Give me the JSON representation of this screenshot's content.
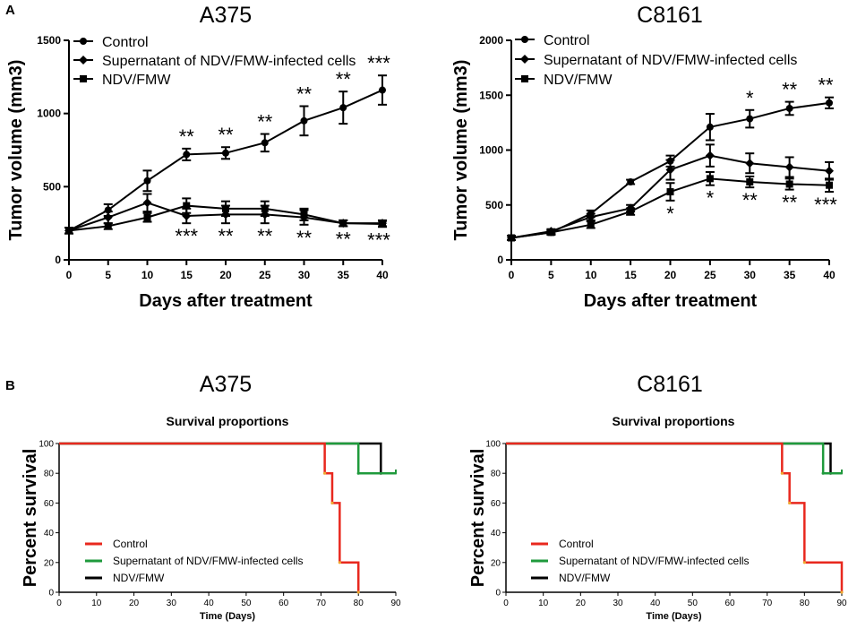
{
  "panel_labels": {
    "a": "A",
    "b": "B"
  },
  "chart_data": [
    {
      "id": "a375-tumor",
      "type": "line",
      "title": "A375",
      "xlabel": "Days after treatment",
      "ylabel": "Tumor volume (mm3)",
      "x": [
        0,
        5,
        10,
        15,
        20,
        25,
        30,
        35,
        40
      ],
      "xticks": [
        "0",
        "5",
        "10",
        "15",
        "20",
        "25",
        "30",
        "35",
        "40"
      ],
      "yticks": [
        "0",
        "500",
        "1000",
        "1500"
      ],
      "xlim": [
        0,
        40
      ],
      "ylim": [
        0,
        1500
      ],
      "series": [
        {
          "name": "Control",
          "marker": "circle",
          "values": [
            200,
            340,
            540,
            720,
            730,
            800,
            950,
            1040,
            1160
          ],
          "errors": [
            20,
            40,
            70,
            40,
            40,
            60,
            100,
            110,
            100
          ]
        },
        {
          "name": "Supernatant of NDV/FMW-infected cells",
          "marker": "diamond",
          "values": [
            200,
            290,
            390,
            300,
            310,
            310,
            290,
            250,
            250
          ],
          "errors": [
            20,
            40,
            60,
            50,
            60,
            60,
            50,
            20,
            20
          ]
        },
        {
          "name": "NDV/FMW",
          "marker": "square",
          "values": [
            200,
            230,
            290,
            370,
            350,
            350,
            310,
            250,
            245
          ],
          "errors": [
            20,
            20,
            30,
            50,
            50,
            50,
            40,
            20,
            20
          ]
        }
      ],
      "annotations": [
        {
          "x": 15,
          "text": "**",
          "pos": "above"
        },
        {
          "x": 20,
          "text": "**",
          "pos": "above"
        },
        {
          "x": 25,
          "text": "**",
          "pos": "above"
        },
        {
          "x": 30,
          "text": "**",
          "pos": "above"
        },
        {
          "x": 35,
          "text": "**",
          "pos": "above"
        },
        {
          "x": 40,
          "text": "***",
          "pos": "above"
        },
        {
          "x": 15,
          "text": "***",
          "pos": "below"
        },
        {
          "x": 20,
          "text": "**",
          "pos": "below"
        },
        {
          "x": 25,
          "text": "**",
          "pos": "below"
        },
        {
          "x": 30,
          "text": "**",
          "pos": "below"
        },
        {
          "x": 35,
          "text": "**",
          "pos": "below"
        },
        {
          "x": 40,
          "text": "***",
          "pos": "below"
        }
      ]
    },
    {
      "id": "c8161-tumor",
      "type": "line",
      "title": "C8161",
      "xlabel": "Days after treatment",
      "ylabel": "Tumor volume (mm3)",
      "x": [
        0,
        5,
        10,
        15,
        20,
        25,
        30,
        35,
        40
      ],
      "xticks": [
        "0",
        "5",
        "10",
        "15",
        "20",
        "25",
        "30",
        "35",
        "40"
      ],
      "yticks": [
        "0",
        "500",
        "1000",
        "1500",
        "2000"
      ],
      "xlim": [
        0,
        40
      ],
      "ylim": [
        0,
        2000
      ],
      "series": [
        {
          "name": "Control",
          "marker": "circle",
          "values": [
            200,
            250,
            420,
            710,
            900,
            1210,
            1285,
            1380,
            1430
          ],
          "errors": [
            20,
            20,
            30,
            20,
            50,
            120,
            80,
            60,
            50
          ]
        },
        {
          "name": "Supernatant of NDV/FMW-infected cells",
          "marker": "diamond",
          "values": [
            200,
            260,
            390,
            470,
            820,
            950,
            880,
            845,
            810
          ],
          "errors": [
            20,
            20,
            30,
            30,
            90,
            100,
            90,
            90,
            80
          ]
        },
        {
          "name": "NDV/FMW",
          "marker": "square",
          "values": [
            200,
            250,
            320,
            440,
            620,
            740,
            710,
            690,
            680
          ],
          "errors": [
            20,
            20,
            30,
            30,
            80,
            60,
            50,
            50,
            60
          ]
        }
      ],
      "annotations": [
        {
          "x": 30,
          "text": "*",
          "pos": "above"
        },
        {
          "x": 35,
          "text": "**",
          "pos": "above"
        },
        {
          "x": 40,
          "text": "**",
          "pos": "above"
        },
        {
          "x": 20,
          "text": "*",
          "pos": "below"
        },
        {
          "x": 25,
          "text": "*",
          "pos": "below"
        },
        {
          "x": 30,
          "text": "**",
          "pos": "below"
        },
        {
          "x": 35,
          "text": "**",
          "pos": "below"
        },
        {
          "x": 40,
          "text": "***",
          "pos": "below"
        }
      ]
    },
    {
      "id": "a375-survival",
      "type": "line",
      "title": "A375",
      "subtitle": "Survival proportions",
      "xlabel": "Time (Days)",
      "ylabel": "Percent survival",
      "xticks": [
        "0",
        "10",
        "20",
        "30",
        "40",
        "50",
        "60",
        "70",
        "80",
        "90"
      ],
      "yticks": [
        "0",
        "20",
        "40",
        "60",
        "80",
        "100"
      ],
      "xlim": [
        0,
        90
      ],
      "ylim": [
        0,
        100
      ],
      "series": [
        {
          "name": "Control",
          "color": "#e8281e",
          "steps": [
            [
              0,
              100
            ],
            [
              71,
              80
            ],
            [
              73,
              60
            ],
            [
              75,
              20
            ],
            [
              80,
              0
            ]
          ],
          "end": 80
        },
        {
          "name": "Supernatant of NDV/FMW-infected cells",
          "color": "#1f9a3c",
          "steps": [
            [
              0,
              100
            ],
            [
              80,
              80
            ]
          ],
          "end": 90
        },
        {
          "name": "NDV/FMW",
          "color": "#000000",
          "steps": [
            [
              0,
              100
            ],
            [
              86,
              80
            ]
          ],
          "end": 90
        }
      ]
    },
    {
      "id": "c8161-survival",
      "type": "line",
      "title": "C8161",
      "subtitle": "Survival proportions",
      "xlabel": "Time (Days)",
      "ylabel": "Percent survival",
      "xticks": [
        "0",
        "10",
        "20",
        "30",
        "40",
        "50",
        "60",
        "70",
        "80",
        "90"
      ],
      "yticks": [
        "0",
        "20",
        "40",
        "60",
        "80",
        "100"
      ],
      "xlim": [
        0,
        90
      ],
      "ylim": [
        0,
        100
      ],
      "series": [
        {
          "name": "Control",
          "color": "#e8281e",
          "steps": [
            [
              0,
              100
            ],
            [
              74,
              80
            ],
            [
              76,
              60
            ],
            [
              80,
              20
            ],
            [
              90,
              0
            ]
          ],
          "end": 90
        },
        {
          "name": "Supernatant of NDV/FMW-infected cells",
          "color": "#1f9a3c",
          "steps": [
            [
              0,
              100
            ],
            [
              85,
              80
            ]
          ],
          "end": 90
        },
        {
          "name": "NDV/FMW",
          "color": "#000000",
          "steps": [
            [
              0,
              100
            ],
            [
              87,
              80
            ]
          ],
          "end": 90
        }
      ]
    }
  ]
}
